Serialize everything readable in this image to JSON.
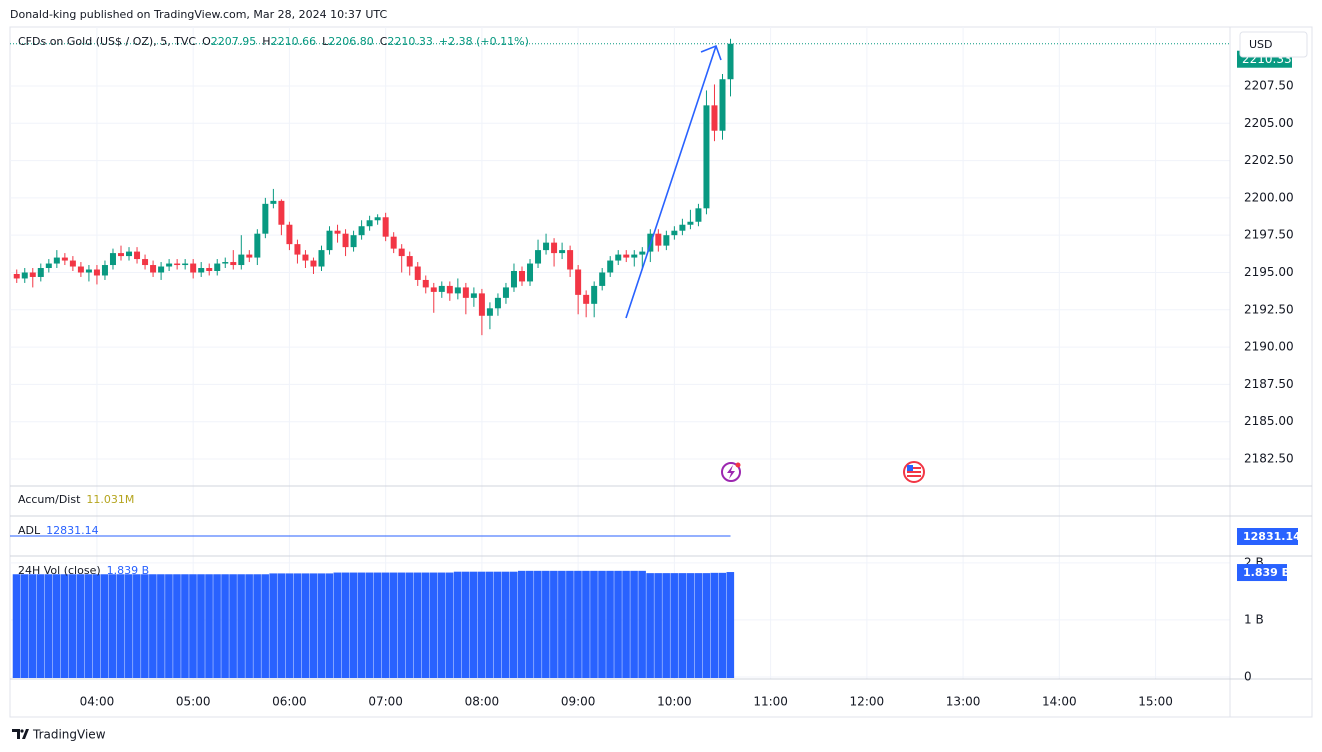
{
  "header": "Donald-king published on TradingView.com, Mar 28, 2024 10:37 UTC",
  "footer": "TradingView",
  "currency": "USD",
  "chart_data": [
    {
      "type": "candlestick",
      "title": "CFDs on Gold (US$ / OZ), 5, TVC",
      "ohlc_prefixes": [
        "O",
        "H",
        "L",
        "C"
      ],
      "ohlc_labels": [
        "2207.95",
        "2210.66",
        "2206.80",
        "2210.33"
      ],
      "change_label": "+2.38 (+0.11%)",
      "up_color": "#089981",
      "down_color": "#f23645",
      "grid": true,
      "xlim": [
        185.8,
        946.4
      ],
      "xticks": [
        {
          "value": 240,
          "label": "04:00"
        },
        {
          "value": 300,
          "label": "05:00"
        },
        {
          "value": 360,
          "label": "06:00"
        },
        {
          "value": 420,
          "label": "07:00"
        },
        {
          "value": 480,
          "label": "08:00"
        },
        {
          "value": 540,
          "label": "09:00"
        },
        {
          "value": 600,
          "label": "10:00"
        },
        {
          "value": 660,
          "label": "11:00"
        },
        {
          "value": 720,
          "label": "12:00"
        },
        {
          "value": 780,
          "label": "13:00"
        },
        {
          "value": 840,
          "label": "14:00"
        },
        {
          "value": 900,
          "label": "15:00"
        }
      ],
      "ylim": [
        2180.76,
        2211.45
      ],
      "yticks": [
        {
          "value": 2182.5,
          "label": "2182.50"
        },
        {
          "value": 2185,
          "label": "2185.00"
        },
        {
          "value": 2187.5,
          "label": "2187.50"
        },
        {
          "value": 2190,
          "label": "2190.00"
        },
        {
          "value": 2192.5,
          "label": "2192.50"
        },
        {
          "value": 2195,
          "label": "2195.00"
        },
        {
          "value": 2197.5,
          "label": "2197.50"
        },
        {
          "value": 2200,
          "label": "2200.00"
        },
        {
          "value": 2202.5,
          "label": "2202.50"
        },
        {
          "value": 2205,
          "label": "2205.00"
        },
        {
          "value": 2207.5,
          "label": "2207.50"
        }
      ],
      "x": [
        190,
        195,
        200,
        205,
        210,
        215,
        220,
        225,
        230,
        235,
        240,
        245,
        250,
        255,
        260,
        265,
        270,
        275,
        280,
        285,
        290,
        295,
        300,
        305,
        310,
        315,
        320,
        325,
        330,
        335,
        340,
        345,
        350,
        355,
        360,
        365,
        370,
        375,
        380,
        385,
        390,
        395,
        400,
        405,
        410,
        415,
        420,
        425,
        430,
        435,
        440,
        445,
        450,
        455,
        460,
        465,
        470,
        475,
        480,
        485,
        490,
        495,
        500,
        505,
        510,
        515,
        520,
        525,
        530,
        535,
        540,
        545,
        550,
        555,
        560,
        565,
        570,
        575,
        580,
        585,
        590,
        595,
        600,
        605,
        610,
        615,
        620,
        625,
        630,
        635
      ],
      "open": [
        2194.9,
        2194.6,
        2195.0,
        2194.7,
        2195.3,
        2195.6,
        2196.0,
        2195.8,
        2195.4,
        2195.0,
        2195.2,
        2194.8,
        2195.5,
        2196.3,
        2196.1,
        2196.4,
        2195.9,
        2195.5,
        2195.0,
        2195.4,
        2195.6,
        2195.5,
        2195.6,
        2195.0,
        2195.3,
        2195.1,
        2195.6,
        2195.7,
        2195.5,
        2196.2,
        2196.0,
        2197.6,
        2199.6,
        2199.8,
        2198.2,
        2196.9,
        2196.2,
        2195.8,
        2195.4,
        2196.5,
        2197.8,
        2197.6,
        2196.7,
        2197.5,
        2198.1,
        2198.5,
        2198.7,
        2197.4,
        2196.6,
        2196.1,
        2195.4,
        2194.5,
        2194.0,
        2193.7,
        2194.1,
        2193.6,
        2194.0,
        2193.3,
        2193.6,
        2192.1,
        2192.6,
        2193.3,
        2194.0,
        2195.1,
        2194.4,
        2195.6,
        2196.5,
        2197.0,
        2196.3,
        2196.5,
        2195.2,
        2193.5,
        2192.9,
        2194.1,
        2195.0,
        2195.8,
        2196.2,
        2196.0,
        2196.2,
        2196.4,
        2197.6,
        2196.8,
        2197.5,
        2197.8,
        2198.2,
        2198.4,
        2199.3,
        2206.2,
        2204.5,
        2207.95
      ],
      "high": [
        2195.2,
        2195.3,
        2195.3,
        2195.6,
        2195.9,
        2196.5,
        2196.3,
        2196.1,
        2195.7,
        2195.5,
        2195.5,
        2195.8,
        2196.6,
        2196.8,
        2196.7,
        2196.7,
        2196.2,
        2195.8,
        2195.7,
        2195.9,
        2195.9,
        2195.9,
        2195.9,
        2195.7,
        2195.6,
        2195.9,
        2196.0,
        2196.5,
        2197.5,
        2196.5,
        2197.9,
        2200.0,
        2200.6,
        2199.9,
        2198.4,
        2197.2,
        2196.5,
        2196.0,
        2196.8,
        2198.1,
        2198.2,
        2197.9,
        2197.8,
        2198.5,
        2198.8,
        2198.9,
        2199.0,
        2197.7,
        2196.9,
        2196.4,
        2195.7,
        2194.8,
        2194.3,
        2194.4,
        2194.4,
        2194.6,
        2194.3,
        2194.0,
        2193.9,
        2193.0,
        2193.6,
        2194.3,
        2195.6,
        2195.4,
        2195.9,
        2197.2,
        2197.6,
        2197.3,
        2197.0,
        2196.8,
        2195.5,
        2193.8,
        2194.4,
        2195.3,
        2196.1,
        2196.5,
        2196.5,
        2196.5,
        2196.7,
        2197.9,
        2197.9,
        2197.8,
        2198.1,
        2198.6,
        2199.2,
        2199.6,
        2207.2,
        2207.6,
        2208.3,
        2210.66
      ],
      "low": [
        2194.3,
        2194.3,
        2194.0,
        2194.4,
        2195.0,
        2195.3,
        2195.5,
        2195.1,
        2194.7,
        2194.4,
        2194.2,
        2194.5,
        2195.2,
        2195.8,
        2195.8,
        2195.6,
        2195.2,
        2194.7,
        2194.5,
        2195.1,
        2195.2,
        2195.2,
        2194.6,
        2194.7,
        2194.8,
        2194.8,
        2195.3,
        2195.2,
        2195.2,
        2195.7,
        2195.5,
        2197.3,
        2199.3,
        2197.5,
        2196.5,
        2195.6,
        2195.3,
        2194.9,
        2195.1,
        2196.2,
        2197.0,
        2196.1,
        2196.4,
        2197.2,
        2197.8,
        2198.2,
        2197.1,
        2196.3,
        2195.0,
        2194.8,
        2194.1,
        2193.6,
        2192.3,
        2193.3,
        2193.1,
        2193.2,
        2192.2,
        2192.7,
        2190.8,
        2191.2,
        2192.1,
        2192.9,
        2193.7,
        2194.1,
        2194.1,
        2195.3,
        2196.2,
        2195.4,
        2195.9,
        2194.7,
        2192.2,
        2192.0,
        2192.0,
        2193.8,
        2194.7,
        2195.5,
        2195.7,
        2195.4,
        2195.2,
        2195.7,
        2196.4,
        2196.5,
        2197.2,
        2197.5,
        2197.9,
        2198.1,
        2198.9,
        2203.8,
        2203.9,
        2206.8
      ],
      "close": [
        2194.6,
        2195.0,
        2194.7,
        2195.3,
        2195.6,
        2196.0,
        2195.8,
        2195.4,
        2195.0,
        2195.2,
        2194.8,
        2195.5,
        2196.3,
        2196.1,
        2196.4,
        2195.9,
        2195.5,
        2195.0,
        2195.4,
        2195.6,
        2195.5,
        2195.6,
        2195.0,
        2195.3,
        2195.1,
        2195.6,
        2195.7,
        2195.5,
        2196.2,
        2196.0,
        2197.6,
        2199.6,
        2199.8,
        2198.2,
        2196.9,
        2196.2,
        2195.8,
        2195.4,
        2196.5,
        2197.8,
        2197.6,
        2196.7,
        2197.5,
        2198.1,
        2198.5,
        2198.7,
        2197.4,
        2196.6,
        2196.1,
        2195.4,
        2194.5,
        2194.0,
        2193.7,
        2194.1,
        2193.6,
        2194.0,
        2193.3,
        2193.6,
        2192.1,
        2192.6,
        2193.3,
        2194.0,
        2195.1,
        2194.4,
        2195.6,
        2196.5,
        2197.0,
        2196.3,
        2196.5,
        2195.2,
        2193.5,
        2192.9,
        2194.1,
        2195.0,
        2195.8,
        2196.2,
        2196.0,
        2196.2,
        2196.4,
        2197.6,
        2196.8,
        2197.5,
        2197.8,
        2198.2,
        2198.4,
        2199.3,
        2206.2,
        2204.5,
        2207.95,
        2210.33
      ]
    },
    {
      "type": "indicator",
      "name": "Accum/Dist",
      "value_label": "11.031M",
      "color": "#b5a51f"
    },
    {
      "type": "line",
      "name": "ADL",
      "value": 12831.14,
      "color": "#2962ff"
    },
    {
      "type": "bar",
      "name": "24H Vol (close)",
      "color": "#2962ff",
      "last_label": "1.839 B",
      "ylim": [
        0,
        2.12
      ],
      "yticks": [
        0,
        {
          "value": 1,
          "label": "1 B"
        },
        {
          "value": 2,
          "label": "2 B"
        }
      ],
      "values": [
        1.8,
        1.8,
        1.8,
        1.8,
        1.8,
        1.8,
        1.8,
        1.8,
        1.8,
        1.8,
        1.8,
        1.8,
        1.8,
        1.8,
        1.8,
        1.8,
        1.8,
        1.8,
        1.8,
        1.8,
        1.8,
        1.8,
        1.8,
        1.8,
        1.8,
        1.8,
        1.8,
        1.8,
        1.8,
        1.8,
        1.8,
        1.8,
        1.815,
        1.815,
        1.815,
        1.815,
        1.815,
        1.815,
        1.815,
        1.815,
        1.83,
        1.83,
        1.83,
        1.83,
        1.83,
        1.83,
        1.83,
        1.83,
        1.83,
        1.83,
        1.83,
        1.83,
        1.83,
        1.83,
        1.83,
        1.845,
        1.845,
        1.845,
        1.845,
        1.845,
        1.845,
        1.845,
        1.845,
        1.86,
        1.86,
        1.86,
        1.86,
        1.86,
        1.86,
        1.86,
        1.86,
        1.86,
        1.86,
        1.86,
        1.86,
        1.86,
        1.86,
        1.86,
        1.86,
        1.82,
        1.82,
        1.82,
        1.82,
        1.82,
        1.82,
        1.82,
        1.82,
        1.825,
        1.825,
        1.839
      ]
    }
  ]
}
